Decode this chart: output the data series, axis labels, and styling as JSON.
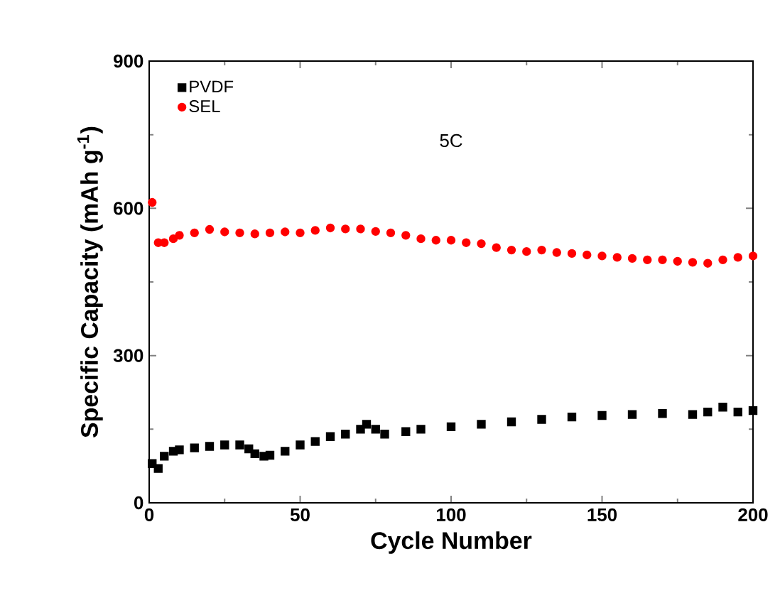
{
  "chart_data": {
    "type": "scatter",
    "xlabel": "Cycle Number",
    "ylabel": "Specific Capacity (mAh g$^{-1}$)",
    "xlim": [
      0,
      200
    ],
    "ylim": [
      0,
      900
    ],
    "xticks": [
      0,
      50,
      100,
      150,
      200
    ],
    "yticks": [
      0,
      300,
      600,
      900
    ],
    "legend": "top left",
    "grid": false,
    "annotations": [
      "5C"
    ],
    "series": [
      {
        "name": "PVDF",
        "color": "#000000",
        "marker": "square",
        "x": [
          1,
          3,
          5,
          8,
          10,
          15,
          20,
          25,
          30,
          33,
          35,
          38,
          40,
          45,
          50,
          55,
          60,
          65,
          70,
          72,
          75,
          78,
          85,
          90,
          100,
          110,
          120,
          130,
          140,
          150,
          160,
          170,
          180,
          185,
          190,
          195,
          200
        ],
        "values": [
          80,
          70,
          95,
          105,
          108,
          112,
          115,
          118,
          118,
          110,
          100,
          95,
          97,
          105,
          118,
          125,
          135,
          140,
          150,
          160,
          150,
          140,
          145,
          150,
          155,
          160,
          165,
          170,
          175,
          178,
          180,
          182,
          180,
          185,
          195,
          185,
          188
        ]
      },
      {
        "name": "SEL",
        "color": "#ff0000",
        "marker": "circle",
        "x": [
          1,
          3,
          5,
          8,
          10,
          15,
          20,
          25,
          30,
          35,
          40,
          45,
          50,
          55,
          60,
          65,
          70,
          75,
          80,
          85,
          90,
          95,
          100,
          105,
          110,
          115,
          120,
          125,
          130,
          135,
          140,
          145,
          150,
          155,
          160,
          165,
          170,
          175,
          180,
          185,
          190,
          195,
          200
        ],
        "values": [
          612,
          530,
          530,
          538,
          545,
          550,
          557,
          552,
          550,
          548,
          550,
          552,
          550,
          555,
          560,
          558,
          558,
          553,
          550,
          545,
          538,
          535,
          535,
          530,
          528,
          520,
          515,
          512,
          515,
          510,
          508,
          505,
          503,
          500,
          498,
          495,
          495,
          492,
          490,
          488,
          495,
          500,
          503
        ]
      }
    ]
  }
}
